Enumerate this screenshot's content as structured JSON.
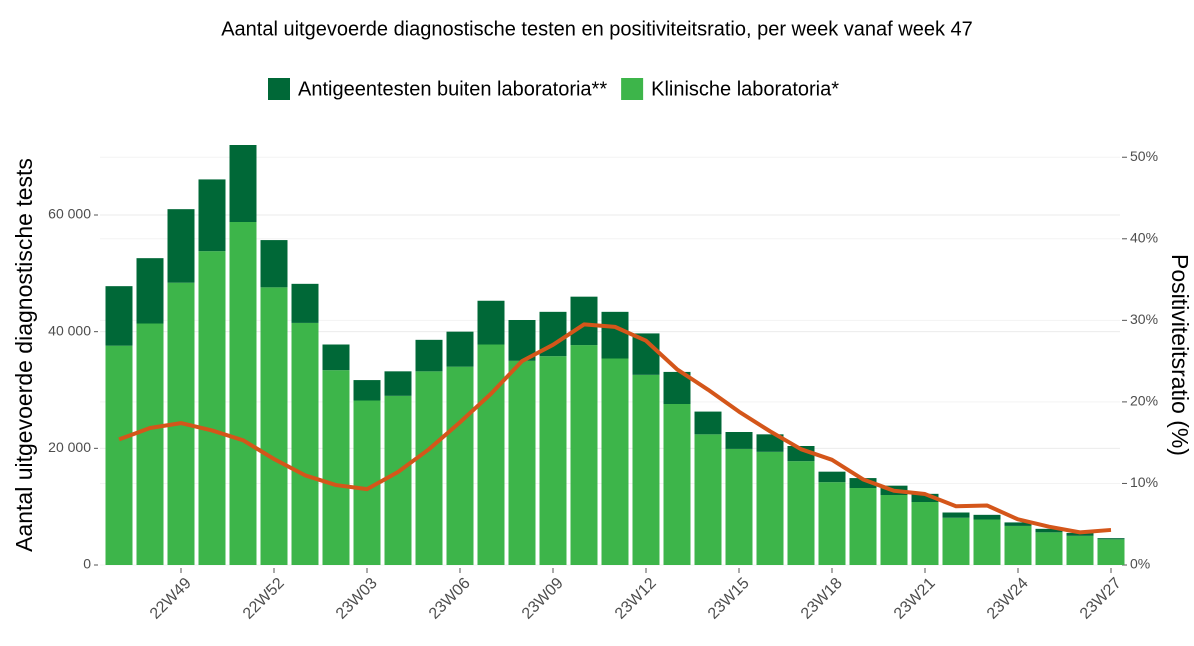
{
  "chart_data": {
    "type": "bar",
    "stacked": true,
    "title": "Aantal uitgevoerde diagnostische testen en positiviteitsratio, per week vanaf week 47",
    "y_label": "Aantal uitgevoerde diagnostische tests",
    "y2_label": "Positiviteitsratio (%)",
    "categories": [
      null,
      null,
      "22W49",
      null,
      null,
      "22W52",
      null,
      null,
      "23W03",
      null,
      null,
      "23W06",
      null,
      null,
      "23W09",
      null,
      null,
      "23W12",
      null,
      null,
      "23W15",
      null,
      null,
      "23W18",
      null,
      null,
      "23W21",
      null,
      null,
      "23W24",
      null,
      null,
      "23W27"
    ],
    "series": [
      {
        "name": "Antigeentesten buiten laboratoria**",
        "color": "#006837",
        "stack_order": 1,
        "values": [
          10200,
          11200,
          12600,
          12300,
          13200,
          8100,
          6700,
          4400,
          3500,
          4200,
          5400,
          6000,
          7500,
          7000,
          7600,
          8300,
          8000,
          7100,
          5500,
          3900,
          2900,
          3000,
          2600,
          1800,
          1700,
          1600,
          1400,
          900,
          800,
          600,
          600,
          500,
          200
        ]
      },
      {
        "name": "Klinische laboratoria*",
        "color": "#3db54a",
        "stack_order": 0,
        "values": [
          37600,
          41400,
          48400,
          53800,
          58800,
          47600,
          41500,
          33400,
          28200,
          29000,
          33200,
          34000,
          37800,
          35000,
          35800,
          37700,
          35400,
          32600,
          27600,
          22400,
          19900,
          19400,
          17800,
          14200,
          13200,
          12000,
          10800,
          8100,
          7800,
          6700,
          5600,
          5000,
          4400
        ]
      }
    ],
    "line": {
      "type": "line",
      "axis": "y2",
      "color": "#d4561a",
      "values": [
        15.4,
        16.8,
        17.4,
        16.5,
        15.3,
        13.0,
        11.0,
        9.8,
        9.3,
        11.4,
        14.2,
        17.5,
        21.0,
        25.0,
        27.0,
        29.5,
        29.2,
        27.5,
        24.0,
        21.5,
        18.8,
        16.4,
        14.2,
        12.9,
        10.5,
        9.1,
        8.7,
        7.2,
        7.3,
        5.6,
        4.7,
        4.0,
        4.3
      ]
    },
    "ylim": [
      0,
      72000
    ],
    "yticks": [
      0,
      {
        "value": 20000,
        "label": "20 000"
      },
      {
        "value": 40000,
        "label": "40 000"
      },
      {
        "value": 60000,
        "label": "60 000"
      }
    ],
    "y2lim": [
      0,
      51.5
    ],
    "y2ticks": [
      {
        "value": 0,
        "label": "0%"
      },
      {
        "value": 10,
        "label": "10%"
      },
      {
        "value": 20,
        "label": "20%"
      },
      {
        "value": 30,
        "label": "30%"
      },
      {
        "value": 40,
        "label": "40%"
      },
      {
        "value": 50,
        "label": "50%"
      }
    ],
    "grid": true,
    "legend": "top"
  }
}
